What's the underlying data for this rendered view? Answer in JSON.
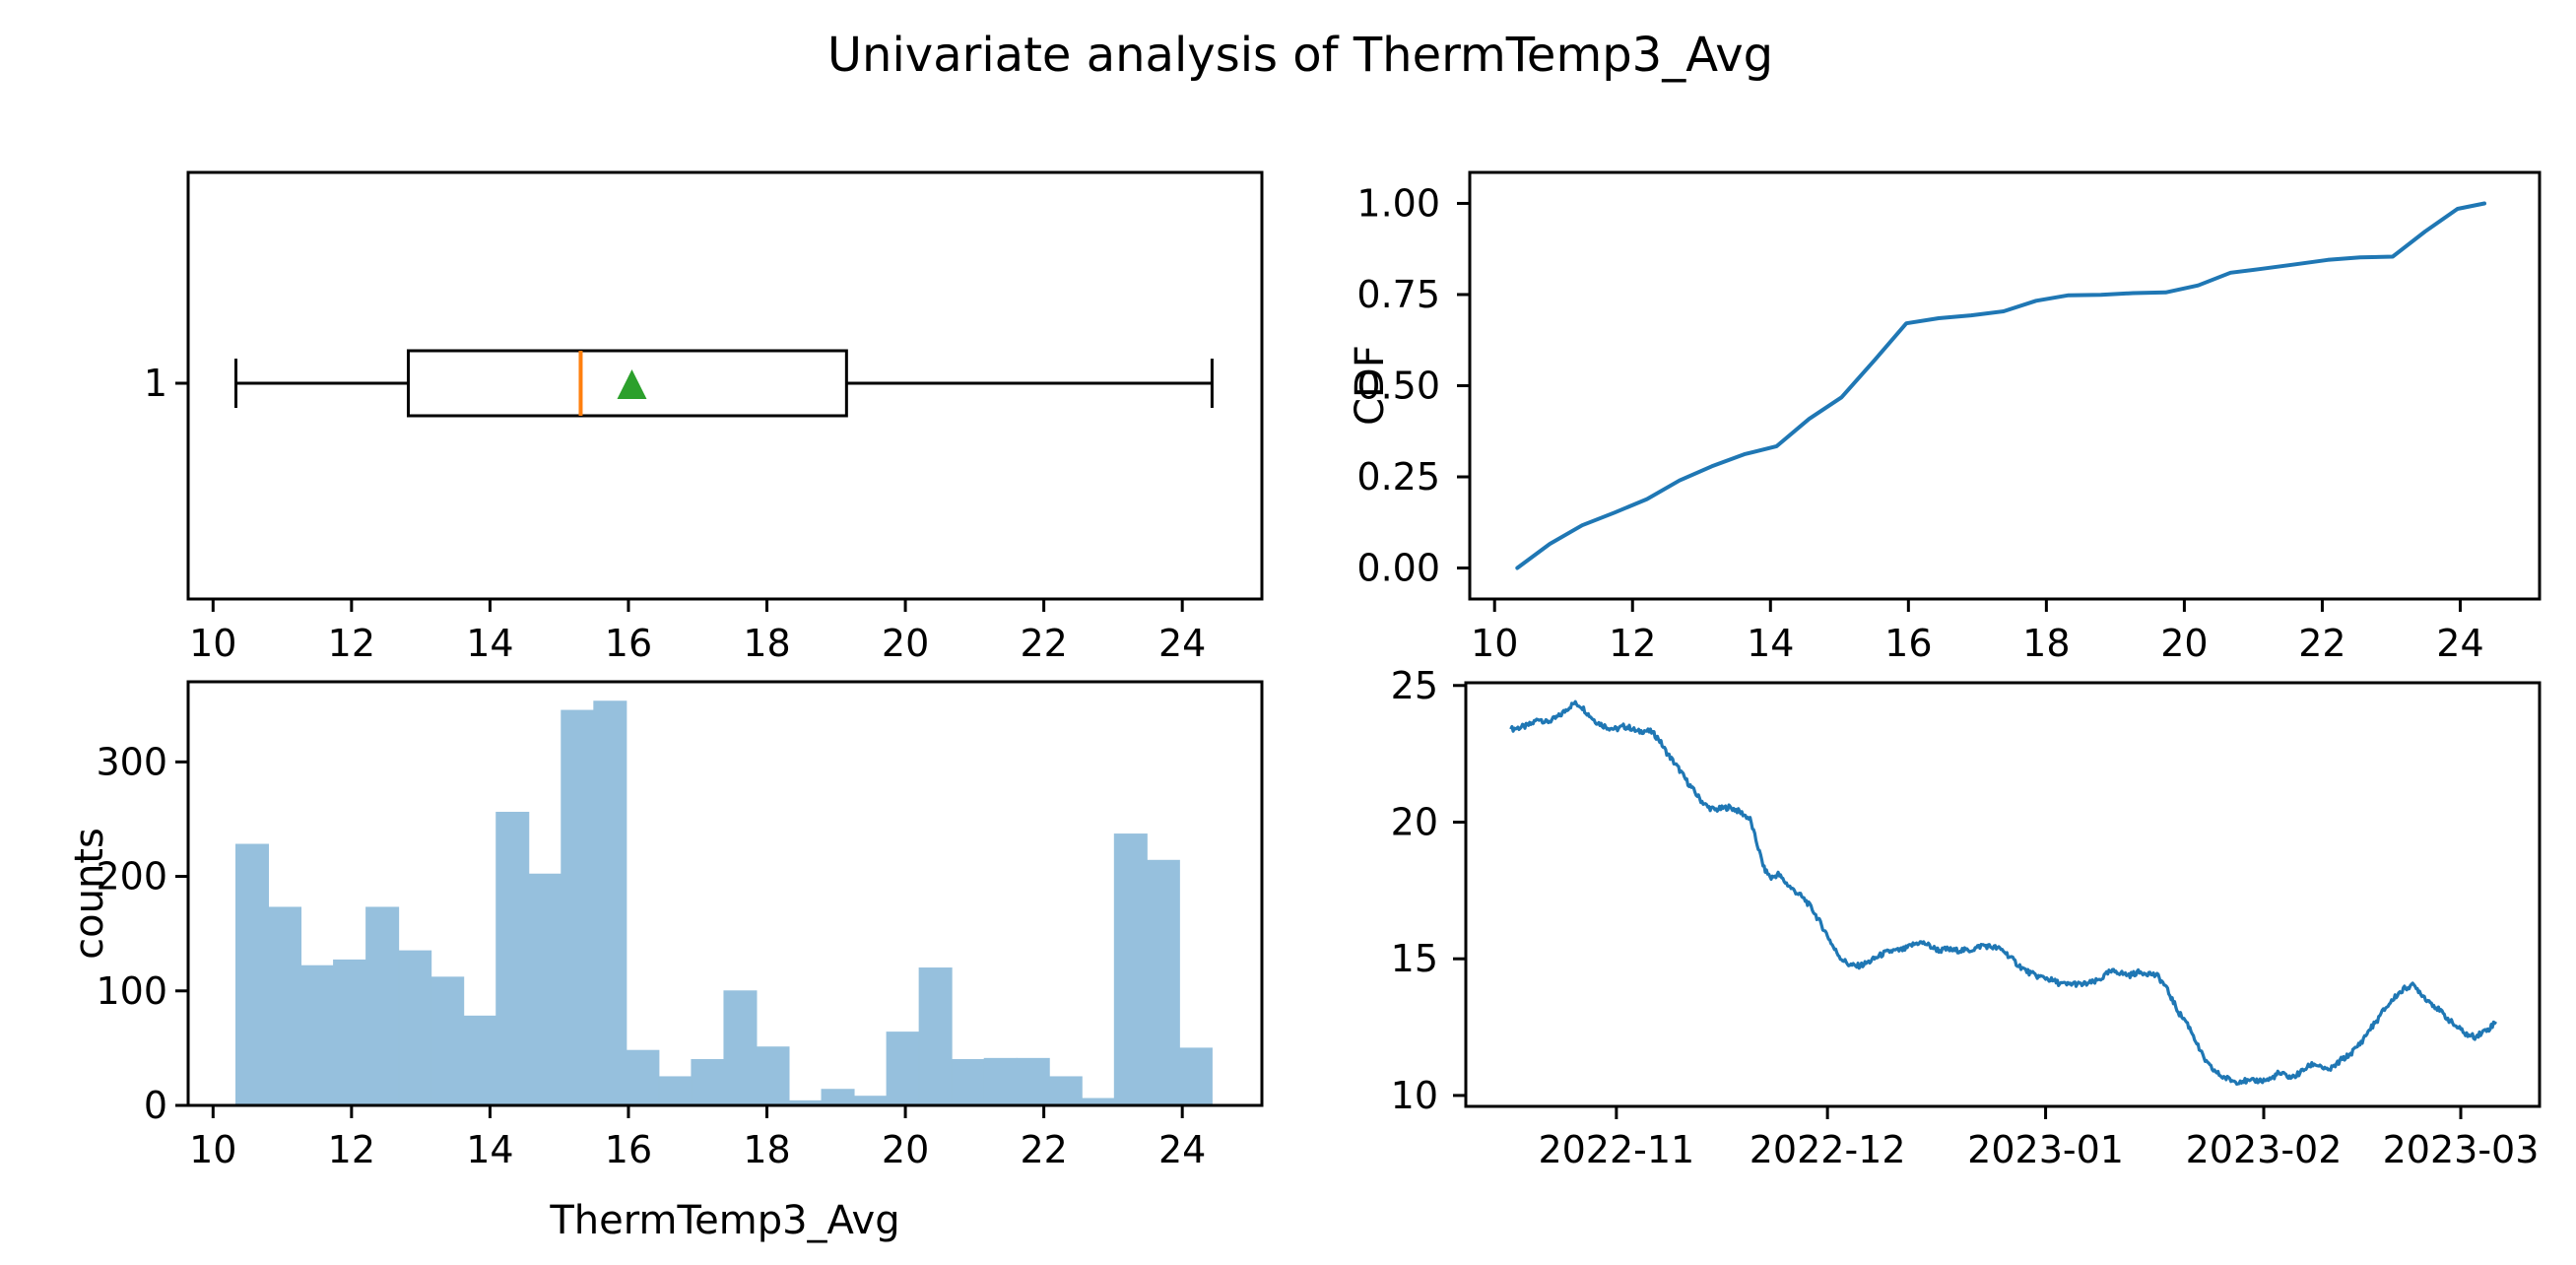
{
  "title": "Univariate analysis of ThermTemp3_Avg",
  "variable": "ThermTemp3_Avg",
  "colors": {
    "line_blue": "#1f77b4",
    "median_orange": "#ff7f0e",
    "mean_green": "#2ca02c",
    "hist_fill": "#96c0dd",
    "axis": "#000000",
    "background": "#ffffff"
  },
  "chart_data": [
    {
      "id": "boxplot",
      "type": "box",
      "orientation": "horizontal",
      "x_ticks": [
        10,
        12,
        14,
        16,
        18,
        20,
        22,
        24
      ],
      "y_tick_labels": [
        "1"
      ],
      "xlim": [
        9.64,
        25.15
      ],
      "stats": {
        "whisker_low": 10.33,
        "q1": 12.82,
        "median": 15.31,
        "mean": 16.05,
        "q3": 19.15,
        "whisker_high": 24.43
      }
    },
    {
      "id": "cdf",
      "type": "line",
      "ylabel": "CDF",
      "x_ticks": [
        10,
        12,
        14,
        16,
        18,
        20,
        22,
        24
      ],
      "y_ticks": [
        "0.00",
        "0.25",
        "0.50",
        "0.75",
        "1.00"
      ],
      "y_tick_values": [
        0,
        0.25,
        0.5,
        0.75,
        1.0
      ],
      "xlim": [
        9.64,
        25.15
      ],
      "ylim": [
        -0.085,
        1.085
      ],
      "x": [
        10.33,
        10.8,
        11.27,
        11.74,
        12.21,
        12.68,
        13.15,
        13.62,
        14.09,
        14.56,
        15.03,
        15.5,
        15.97,
        16.44,
        16.91,
        17.38,
        17.85,
        18.32,
        18.79,
        19.26,
        19.73,
        20.2,
        20.67,
        21.14,
        21.61,
        22.08,
        22.55,
        23.02,
        23.49,
        23.96,
        24.35
      ],
      "y": [
        0.0,
        0.066,
        0.117,
        0.152,
        0.189,
        0.24,
        0.279,
        0.312,
        0.334,
        0.409,
        0.468,
        0.568,
        0.671,
        0.685,
        0.693,
        0.704,
        0.733,
        0.748,
        0.749,
        0.754,
        0.756,
        0.775,
        0.81,
        0.821,
        0.833,
        0.845,
        0.852,
        0.854,
        0.923,
        0.985,
        1.0
      ]
    },
    {
      "id": "histogram",
      "type": "bar",
      "xlabel": "ThermTemp3_Avg",
      "ylabel": "counts",
      "x_ticks": [
        10,
        12,
        14,
        16,
        18,
        20,
        22,
        24
      ],
      "y_ticks": [
        0,
        100,
        200,
        300
      ],
      "xlim": [
        9.64,
        25.15
      ],
      "ylim": [
        0,
        370
      ],
      "bin_start": 10.33,
      "bin_width": 0.47,
      "counts": [
        228,
        173,
        122,
        127,
        173,
        135,
        112,
        78,
        256,
        202,
        345,
        353,
        48,
        25,
        40,
        100,
        51,
        4,
        14,
        8,
        64,
        120,
        40,
        41,
        41,
        25,
        6,
        237,
        214,
        50
      ]
    },
    {
      "id": "timeseries",
      "type": "line",
      "x_tick_labels": [
        "2022-11",
        "2022-12",
        "2023-01",
        "2023-02",
        "2023-03"
      ],
      "x_tick_days": [
        19,
        49,
        80,
        111,
        139
      ],
      "time_origin": "2022-10-13",
      "y_ticks": [
        10,
        15,
        20,
        25
      ],
      "xlim_days": [
        -2.4,
        150.2
      ],
      "ylim": [
        9.6,
        25.1
      ],
      "noise_amplitude": 0.1,
      "points": [
        [
          4,
          23.4
        ],
        [
          5,
          23.45
        ],
        [
          6,
          23.5
        ],
        [
          7,
          23.6
        ],
        [
          8,
          23.8
        ],
        [
          9,
          23.65
        ],
        [
          10,
          23.75
        ],
        [
          11,
          23.9
        ],
        [
          12,
          24.15
        ],
        [
          13,
          24.35
        ],
        [
          14,
          24.25
        ],
        [
          15,
          23.95
        ],
        [
          16,
          23.7
        ],
        [
          17,
          23.55
        ],
        [
          18,
          23.45
        ],
        [
          19,
          23.4
        ],
        [
          20,
          23.5
        ],
        [
          21,
          23.45
        ],
        [
          22,
          23.3
        ],
        [
          23,
          23.35
        ],
        [
          24,
          23.3
        ],
        [
          25,
          23.05
        ],
        [
          26,
          22.6
        ],
        [
          27,
          22.25
        ],
        [
          28,
          21.9
        ],
        [
          29,
          21.5
        ],
        [
          30,
          21.15
        ],
        [
          31,
          20.8
        ],
        [
          32,
          20.55
        ],
        [
          33,
          20.45
        ],
        [
          34,
          20.5
        ],
        [
          35,
          20.55
        ],
        [
          36,
          20.45
        ],
        [
          37,
          20.3
        ],
        [
          38,
          20.1
        ],
        [
          39,
          19.2
        ],
        [
          40,
          18.3
        ],
        [
          41,
          17.95
        ],
        [
          42,
          18.1
        ],
        [
          43,
          17.8
        ],
        [
          44,
          17.55
        ],
        [
          45,
          17.35
        ],
        [
          46,
          17.1
        ],
        [
          47,
          16.75
        ],
        [
          48,
          16.3
        ],
        [
          49,
          15.85
        ],
        [
          50,
          15.35
        ],
        [
          51,
          15.0
        ],
        [
          52,
          14.8
        ],
        [
          53,
          14.72
        ],
        [
          54,
          14.78
        ],
        [
          55,
          14.9
        ],
        [
          56,
          15.05
        ],
        [
          57,
          15.2
        ],
        [
          58,
          15.28
        ],
        [
          59,
          15.3
        ],
        [
          60,
          15.35
        ],
        [
          61,
          15.5
        ],
        [
          62,
          15.6
        ],
        [
          63,
          15.55
        ],
        [
          64,
          15.4
        ],
        [
          65,
          15.3
        ],
        [
          66,
          15.35
        ],
        [
          67,
          15.3
        ],
        [
          68,
          15.32
        ],
        [
          69,
          15.3
        ],
        [
          70,
          15.38
        ],
        [
          71,
          15.5
        ],
        [
          72,
          15.45
        ],
        [
          73,
          15.4
        ],
        [
          74,
          15.3
        ],
        [
          75,
          15.05
        ],
        [
          76,
          14.8
        ],
        [
          77,
          14.6
        ],
        [
          78,
          14.45
        ],
        [
          79,
          14.35
        ],
        [
          80,
          14.3
        ],
        [
          81,
          14.2
        ],
        [
          82,
          14.1
        ],
        [
          83,
          14.05
        ],
        [
          84,
          14.1
        ],
        [
          85,
          14.05
        ],
        [
          86,
          14.1
        ],
        [
          87,
          14.15
        ],
        [
          88,
          14.3
        ],
        [
          89,
          14.5
        ],
        [
          90,
          14.55
        ],
        [
          91,
          14.45
        ],
        [
          92,
          14.4
        ],
        [
          93,
          14.5
        ],
        [
          94,
          14.5
        ],
        [
          95,
          14.45
        ],
        [
          96,
          14.35
        ],
        [
          97,
          14.0
        ],
        [
          98,
          13.5
        ],
        [
          99,
          13.0
        ],
        [
          100,
          12.7
        ],
        [
          101,
          12.2
        ],
        [
          102,
          11.6
        ],
        [
          103,
          11.15
        ],
        [
          104,
          10.9
        ],
        [
          105,
          10.7
        ],
        [
          106,
          10.6
        ],
        [
          107,
          10.5
        ],
        [
          108,
          10.55
        ],
        [
          109,
          10.5
        ],
        [
          110,
          10.55
        ],
        [
          111,
          10.55
        ],
        [
          112,
          10.6
        ],
        [
          113,
          10.8
        ],
        [
          114,
          10.75
        ],
        [
          115,
          10.65
        ],
        [
          116,
          10.8
        ],
        [
          117,
          11.0
        ],
        [
          118,
          11.15
        ],
        [
          119,
          11.1
        ],
        [
          120,
          10.9
        ],
        [
          121,
          11.05
        ],
        [
          122,
          11.3
        ],
        [
          123,
          11.45
        ],
        [
          124,
          11.7
        ],
        [
          125,
          12.0
        ],
        [
          126,
          12.4
        ],
        [
          127,
          12.7
        ],
        [
          128,
          13.1
        ],
        [
          129,
          13.4
        ],
        [
          130,
          13.7
        ],
        [
          131,
          13.9
        ],
        [
          132,
          14.05
        ],
        [
          133,
          13.85
        ],
        [
          134,
          13.55
        ],
        [
          135,
          13.35
        ],
        [
          136,
          13.1
        ],
        [
          137,
          12.85
        ],
        [
          138,
          12.6
        ],
        [
          139,
          12.4
        ],
        [
          140,
          12.2
        ],
        [
          141,
          12.15
        ],
        [
          142,
          12.3
        ],
        [
          143,
          12.45
        ],
        [
          144,
          12.7
        ]
      ]
    }
  ]
}
